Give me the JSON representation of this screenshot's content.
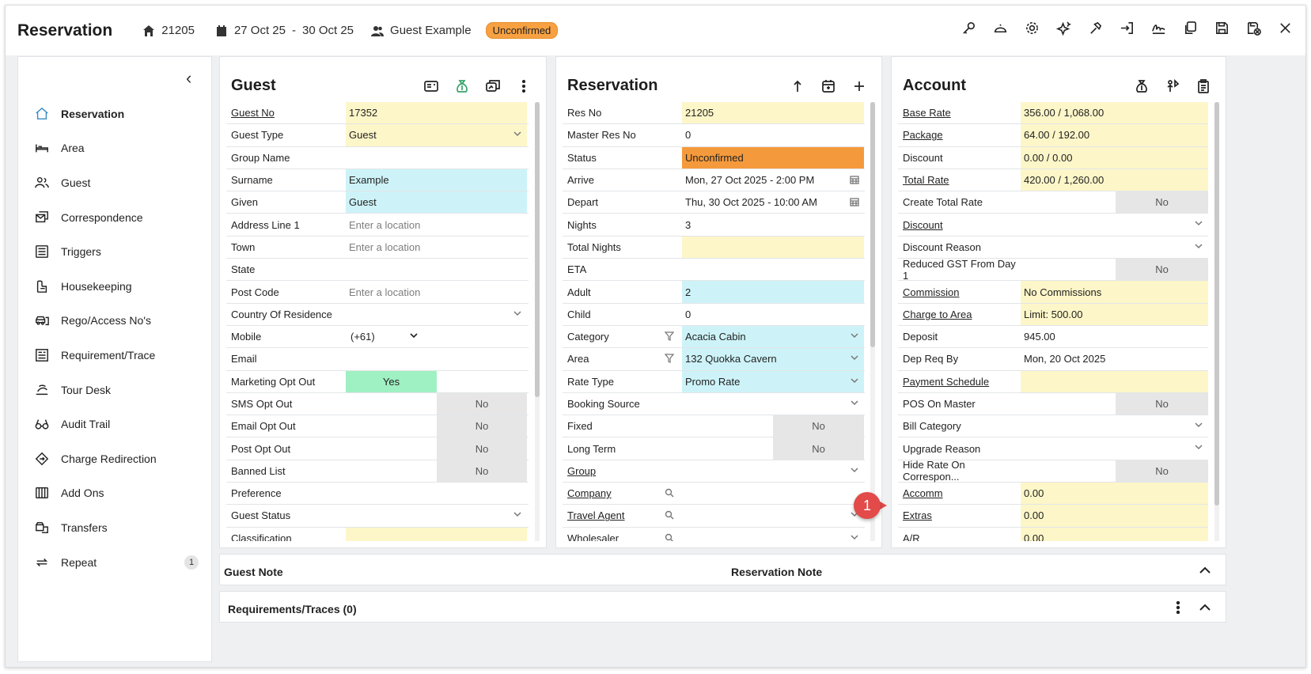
{
  "header": {
    "title": "Reservation",
    "res_no": "21205",
    "date_from": "27 Oct 25",
    "date_sep": "-",
    "date_to": "30 Oct 25",
    "guest": "Guest Example",
    "status_badge": "Unconfirmed",
    "actions": [
      "key-icon",
      "bell-icon",
      "settings-icon",
      "sparkle-icon",
      "hammer-icon",
      "sign-in-icon",
      "signature-icon",
      "copy-icon",
      "save-icon",
      "save-close-icon",
      "close-icon"
    ]
  },
  "sidebar": {
    "items": [
      {
        "label": "Reservation",
        "icon": "home-icon",
        "active": true
      },
      {
        "label": "Area",
        "icon": "bed-icon"
      },
      {
        "label": "Guest",
        "icon": "users-icon"
      },
      {
        "label": "Correspondence",
        "icon": "mail-icon"
      },
      {
        "label": "Triggers",
        "icon": "list-icon"
      },
      {
        "label": "Housekeeping",
        "icon": "housekeeping-icon"
      },
      {
        "label": "Rego/Access No's",
        "icon": "car-icon"
      },
      {
        "label": "Requirement/Trace",
        "icon": "requirement-icon"
      },
      {
        "label": "Tour Desk",
        "icon": "tour-icon"
      },
      {
        "label": "Audit Trail",
        "icon": "glasses-icon"
      },
      {
        "label": "Charge Redirection",
        "icon": "redirect-icon"
      },
      {
        "label": "Add Ons",
        "icon": "addons-icon"
      },
      {
        "label": "Transfers",
        "icon": "transfers-icon"
      },
      {
        "label": "Repeat",
        "icon": "repeat-icon",
        "count": "1"
      }
    ]
  },
  "guest_panel": {
    "title": "Guest",
    "rows": [
      {
        "label": "Guest No",
        "value": "17352",
        "bg": "yellow",
        "link": true
      },
      {
        "label": "Guest Type",
        "value": "Guest",
        "bg": "yellow",
        "dropdown": true
      },
      {
        "label": "Group Name",
        "value": ""
      },
      {
        "label": "Surname",
        "value": "Example",
        "bg": "cyan"
      },
      {
        "label": "Given",
        "value": "Guest",
        "bg": "cyan"
      },
      {
        "label": "Address Line 1",
        "placeholder": "Enter a location"
      },
      {
        "label": "Town",
        "placeholder": "Enter a location"
      },
      {
        "label": "State",
        "value": ""
      },
      {
        "label": "Post Code",
        "placeholder": "Enter a location"
      },
      {
        "label": "Country Of Residence",
        "value": "",
        "dropdown": true
      },
      {
        "label": "Mobile",
        "value": "(+61)",
        "phone": true
      },
      {
        "label": "Email",
        "value": ""
      },
      {
        "label": "Marketing Opt Out",
        "toggle": "yes",
        "toggle_label": "Yes"
      },
      {
        "label": "SMS Opt Out",
        "toggle": "no",
        "toggle_label": "No"
      },
      {
        "label": "Email Opt Out",
        "toggle": "no",
        "toggle_label": "No"
      },
      {
        "label": "Post Opt Out",
        "toggle": "no",
        "toggle_label": "No"
      },
      {
        "label": "Banned List",
        "toggle": "no",
        "toggle_label": "No"
      },
      {
        "label": "Preference",
        "value": ""
      },
      {
        "label": "Guest Status",
        "value": "",
        "dropdown": true
      },
      {
        "label": "Classification",
        "value": "",
        "bg": "yellow"
      }
    ]
  },
  "reservation_panel": {
    "title": "Reservation",
    "rows": [
      {
        "label": "Res No",
        "value": "21205",
        "bg": "yellow"
      },
      {
        "label": "Master Res No",
        "value": "0"
      },
      {
        "label": "Status",
        "value": "Unconfirmed",
        "bg": "orange"
      },
      {
        "label": "Arrive",
        "value": "Mon, 27 Oct 2025 - 2:00 PM",
        "calendar": true
      },
      {
        "label": "Depart",
        "value": "Thu, 30 Oct 2025 - 10:00 AM",
        "calendar": true
      },
      {
        "label": "Nights",
        "value": "3"
      },
      {
        "label": "Total Nights",
        "value": "",
        "bg": "yellow"
      },
      {
        "label": "ETA",
        "value": ""
      },
      {
        "label": "Adult",
        "value": "2",
        "bg": "cyan"
      },
      {
        "label": "Child",
        "value": "0"
      },
      {
        "label": "Category",
        "value": "Acacia Cabin",
        "bg": "cyan",
        "dropdown": true,
        "filter": true
      },
      {
        "label": "Area",
        "value": "132 Quokka Cavern",
        "bg": "cyan",
        "dropdown": true,
        "filter": true
      },
      {
        "label": "Rate Type",
        "value": "Promo Rate",
        "bg": "cyan",
        "dropdown": true
      },
      {
        "label": "Booking Source",
        "value": "",
        "dropdown": true
      },
      {
        "label": "Fixed",
        "toggle": "no",
        "toggle_label": "No"
      },
      {
        "label": "Long Term",
        "toggle": "no",
        "toggle_label": "No"
      },
      {
        "label": "Group",
        "value": "",
        "link": true,
        "dropdown": true
      },
      {
        "label": "Company",
        "value": "",
        "link": true,
        "search": true
      },
      {
        "label": "Travel Agent",
        "value": "",
        "link": true,
        "search": true,
        "dropdown": true
      },
      {
        "label": "Wholesaler",
        "value": "",
        "search": true,
        "dropdown": true
      }
    ]
  },
  "account_panel": {
    "title": "Account",
    "rows": [
      {
        "label": "Base Rate",
        "value": "356.00 / 1,068.00",
        "bg": "yellow",
        "link": true
      },
      {
        "label": "Package",
        "value": "64.00 / 192.00",
        "bg": "yellow",
        "link": true
      },
      {
        "label": "Discount",
        "value": "0.00 / 0.00",
        "bg": "yellow"
      },
      {
        "label": "Total Rate",
        "value": "420.00 / 1,260.00",
        "bg": "yellow",
        "link": true
      },
      {
        "label": "Create Total Rate",
        "toggle": "no",
        "toggle_label": "No"
      },
      {
        "label": "Discount",
        "value": "",
        "link": true,
        "dropdown": true
      },
      {
        "label": "Discount Reason",
        "value": "",
        "dropdown": true
      },
      {
        "label": "Reduced GST From Day 1",
        "toggle": "no",
        "toggle_label": "No"
      },
      {
        "label": "Commission",
        "value": "No Commissions",
        "bg": "yellow",
        "link": true
      },
      {
        "label": "Charge to Area",
        "value": "Limit: 500.00",
        "bg": "yellow",
        "link": true
      },
      {
        "label": "Deposit",
        "value": "945.00"
      },
      {
        "label": "Dep Req By",
        "value": "Mon, 20 Oct 2025"
      },
      {
        "label": "Payment Schedule",
        "value": "",
        "bg": "yellow",
        "link": true
      },
      {
        "label": "POS On Master",
        "toggle": "no",
        "toggle_label": "No"
      },
      {
        "label": "Bill Category",
        "value": "",
        "dropdown": true
      },
      {
        "label": "Upgrade Reason",
        "value": "",
        "dropdown": true
      },
      {
        "label": "Hide Rate On Correspon...",
        "toggle": "no",
        "toggle_label": "No"
      },
      {
        "label": "Accomm",
        "value": "0.00",
        "bg": "yellow",
        "link": true
      },
      {
        "label": "Extras",
        "value": "0.00",
        "bg": "yellow",
        "link": true
      },
      {
        "label": "A/R",
        "value": "0.00",
        "bg": "yellow"
      }
    ]
  },
  "notes": {
    "guest_note": "Guest Note",
    "reservation_note": "Reservation Note",
    "requirements": "Requirements/Traces (0)"
  },
  "callout": {
    "number": "1",
    "color": "#e34a4a"
  },
  "colors": {
    "yellow": "#fdf6c8",
    "cyan": "#cdf3f8",
    "orange": "#f59a3c",
    "green": "#9ff0c2",
    "accent": "#3a8ec8"
  }
}
